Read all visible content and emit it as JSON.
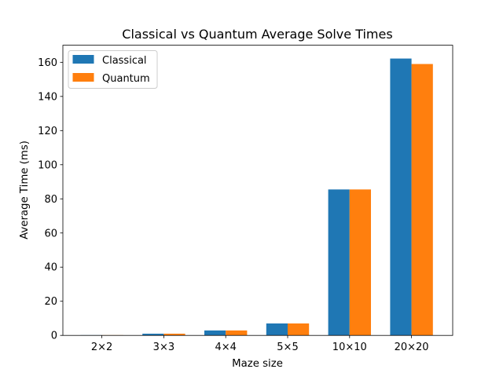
{
  "chart_data": {
    "type": "bar",
    "title": "Classical vs Quantum Average Solve Times",
    "xlabel": "Maze size",
    "ylabel": "Average Time (ms)",
    "categories": [
      "2×2",
      "3×3",
      "4×4",
      "5×5",
      "10×10",
      "20×20"
    ],
    "series": [
      {
        "name": "Classical",
        "color": "#1f77b4",
        "values": [
          0.15,
          1.0,
          2.9,
          7.0,
          85.5,
          162.2
        ]
      },
      {
        "name": "Quantum",
        "color": "#ff7f0e",
        "values": [
          0.15,
          1.0,
          2.9,
          7.0,
          85.5,
          159.0
        ]
      }
    ],
    "ylim": [
      0,
      170
    ],
    "yticks": [
      0,
      20,
      40,
      60,
      80,
      100,
      120,
      140,
      160
    ],
    "grid": false,
    "legend_position": "top-left"
  }
}
